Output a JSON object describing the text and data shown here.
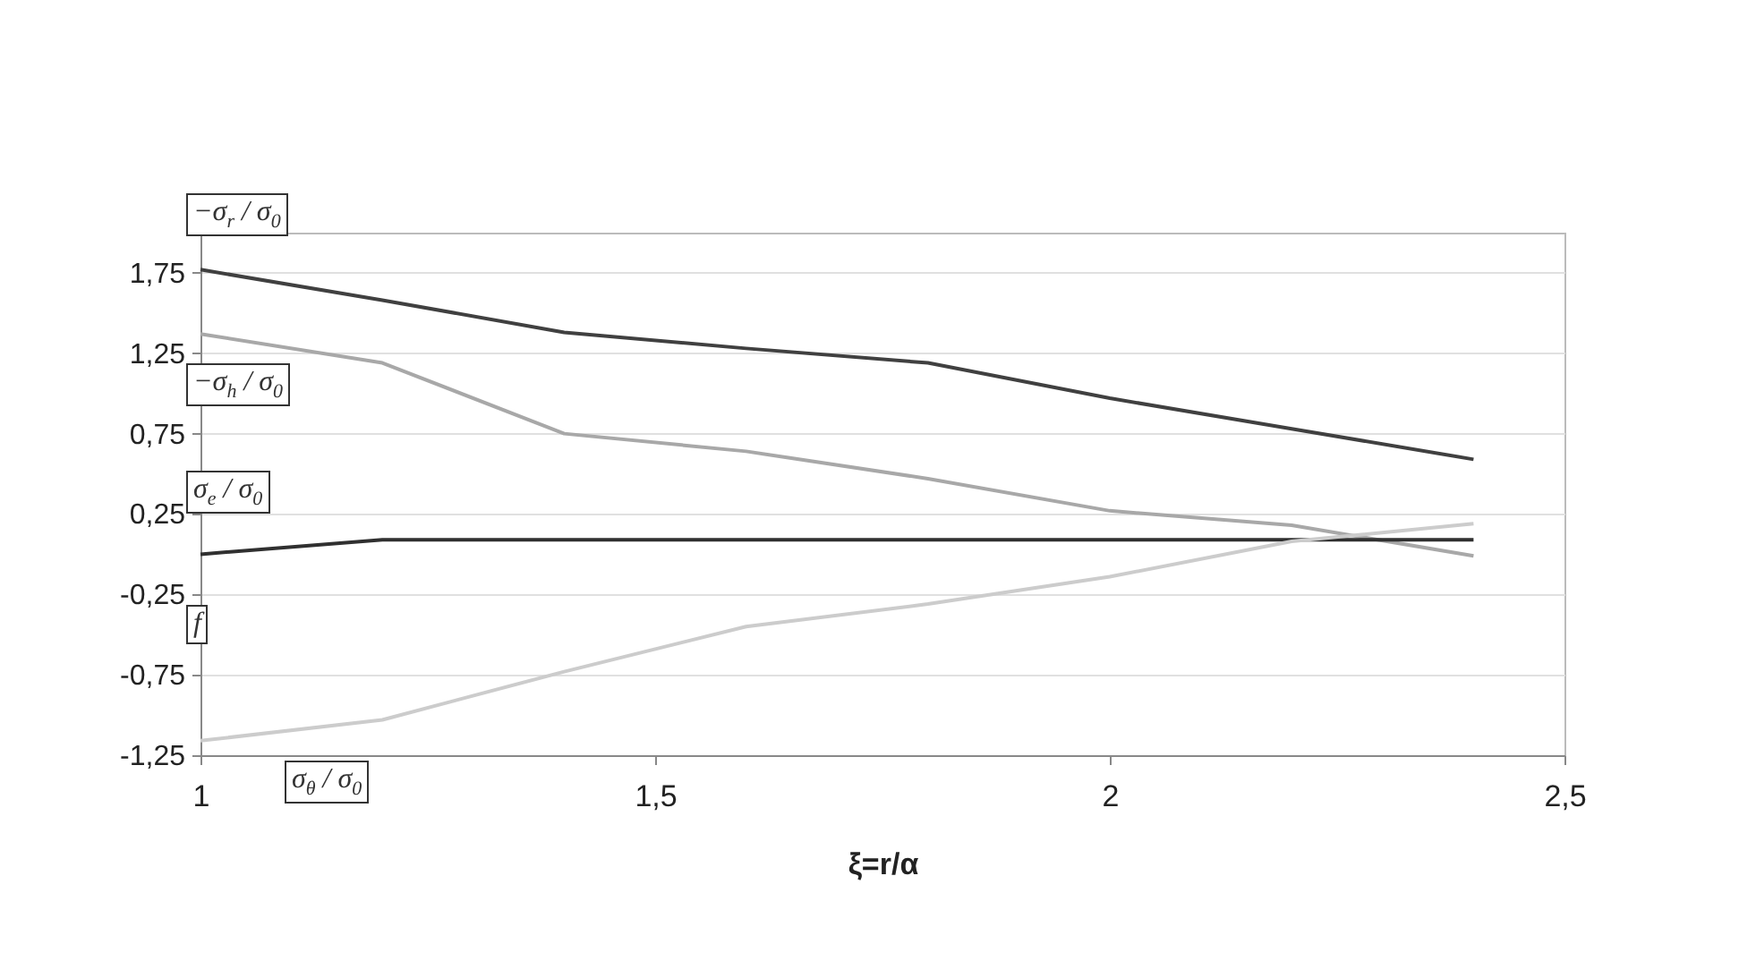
{
  "chart_data": {
    "type": "line",
    "xlabel": "ξ=r/α",
    "x": [
      1,
      1.2,
      1.4,
      1.6,
      1.8,
      2.0,
      2.2,
      2.4
    ],
    "series": [
      {
        "name": "−σ$_{r}$ / σ$_{0}$",
        "color": "#404040",
        "values": [
          1.77,
          1.58,
          1.38,
          1.28,
          1.19,
          0.97,
          0.78,
          0.59
        ]
      },
      {
        "name": "−σ$_{h}$ / σ$_{0}$",
        "color": "#a8a8a8",
        "values": [
          1.37,
          1.19,
          0.75,
          0.64,
          0.47,
          0.27,
          0.18,
          -0.01
        ]
      },
      {
        "name": "σ$_{e}$ / σ$_{0}$",
        "color": "#303030",
        "values": [
          0.0,
          0.09,
          0.09,
          0.09,
          0.09,
          0.09,
          0.09,
          0.09
        ]
      },
      {
        "name": "σ$_{θ}$ / σ$_{0}$",
        "color": "#cccccc",
        "values": [
          -1.16,
          -1.03,
          -0.73,
          -0.45,
          -0.31,
          -0.14,
          0.08,
          0.19
        ]
      }
    ],
    "annotations": [
      "f"
    ],
    "xlim": [
      1,
      2.5
    ],
    "xticks": [
      1,
      {
        "value": 1.5,
        "label": "1,5"
      },
      2,
      {
        "value": 2.5,
        "label": "2,5"
      }
    ],
    "ylim": [
      -1.25,
      2.0
    ],
    "yticks": [
      {
        "value": -1.25,
        "label": "-1,25"
      },
      {
        "value": -0.75,
        "label": "-0,75"
      },
      {
        "value": -0.25,
        "label": "-0,25"
      },
      {
        "value": 0.25,
        "label": "0,25"
      },
      {
        "value": 0.75,
        "label": "0,75"
      },
      {
        "value": 1.25,
        "label": "1,25"
      },
      {
        "value": 1.75,
        "label": "1,75"
      }
    ],
    "grid": "y",
    "legend": false,
    "marker": "none",
    "line_style": "solid"
  }
}
